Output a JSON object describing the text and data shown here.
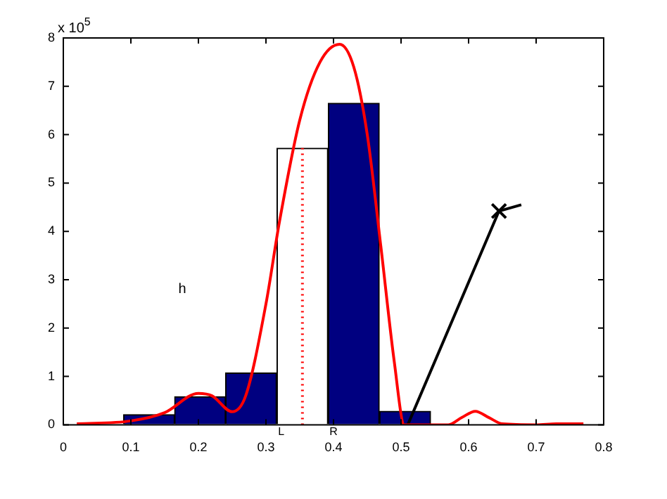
{
  "chart_data": {
    "type": "histogram",
    "bins": [
      0.089,
      0.165,
      0.24,
      0.316,
      0.392,
      0.468,
      0.544
    ],
    "values": [
      0.21,
      0.58,
      1.07,
      5.72,
      6.65,
      0.28
    ],
    "colors": [
      "#000080",
      "#000080",
      "#000080",
      "#ffffff",
      "#000080",
      "#000080"
    ],
    "series": [
      {
        "type": "line",
        "color": "#ff0000",
        "x": [
          0.02,
          0.1,
          0.15,
          0.2,
          0.22,
          0.25,
          0.27,
          0.3,
          0.32,
          0.35,
          0.38,
          0.409,
          0.43,
          0.45,
          0.47,
          0.49,
          0.505,
          0.57,
          0.59,
          0.61,
          0.63,
          0.65,
          0.7,
          0.73,
          0.77
        ],
        "values": [
          0.02,
          0.08,
          0.25,
          0.65,
          0.6,
          0.27,
          0.6,
          2.5,
          4.2,
          6.3,
          7.5,
          7.87,
          7.4,
          6.0,
          3.7,
          1.3,
          0,
          0,
          0.15,
          0.28,
          0.15,
          0.02,
          0,
          0.02,
          0.02
        ]
      },
      {
        "type": "line",
        "color": "#ff0000",
        "line_style": "dotted",
        "x": [
          0.354,
          0.354
        ],
        "values": [
          0,
          5.72
        ]
      },
      {
        "type": "line",
        "color": "#000000",
        "x": [
          0.51,
          0.645,
          0.678
        ],
        "values": [
          0,
          4.42,
          4.55
        ]
      },
      {
        "type": "scatter",
        "color": "#000000",
        "marker": "cross",
        "x": [
          0.645
        ],
        "values": [
          4.42
        ]
      }
    ],
    "xlim": [
      0,
      0.8
    ],
    "xticks": [
      0,
      0.1,
      0.2,
      0.3,
      0.4,
      0.5,
      0.6,
      0.7,
      0.8
    ],
    "ylim": [
      0,
      8
    ],
    "yticks": [
      0,
      1,
      2,
      3,
      4,
      5,
      6,
      7,
      8
    ],
    "grid": false,
    "legend": false,
    "annotations": [
      "x 10$^{5}$",
      "h",
      {
        "text": "L",
        "x": 0.316,
        "y": 0
      },
      {
        "text": "R",
        "x": 0.392,
        "y": 0
      }
    ]
  }
}
